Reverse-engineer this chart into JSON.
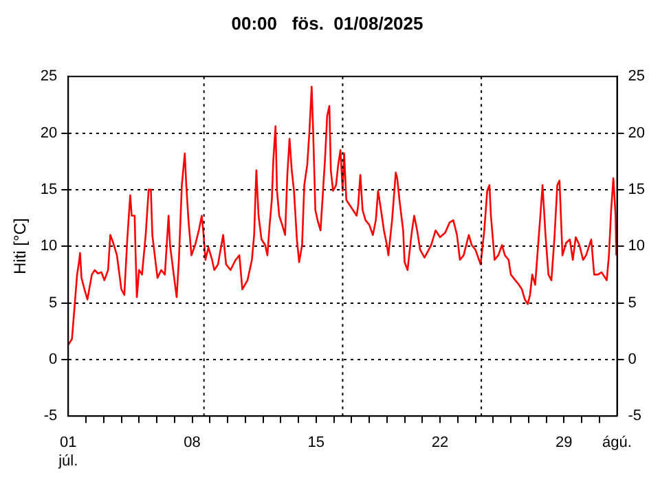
{
  "chart_data": {
    "type": "line",
    "title": "00:00   fös.  01/08/2025",
    "ylabel": "Hiti [°C]",
    "x": [
      "2025-07-01T00:00",
      "2025-07-01T05:00",
      "2025-07-01T08:00",
      "2025-07-01T12:00",
      "2025-07-01T15:00",
      "2025-07-01T16:00",
      "2025-07-01T18:00",
      "2025-07-01T22:00",
      "2025-07-02T02:00",
      "2025-07-02T08:00",
      "2025-07-02T12:00",
      "2025-07-02T16:00",
      "2025-07-02T21:00",
      "2025-07-03T01:00",
      "2025-07-03T06:00",
      "2025-07-03T09:00",
      "2025-07-03T13:00",
      "2025-07-03T18:00",
      "2025-07-04T00:00",
      "2025-07-04T04:00",
      "2025-07-04T08:00",
      "2025-07-04T12:00",
      "2025-07-04T14:00",
      "2025-07-04T18:00",
      "2025-07-04T19:00",
      "2025-07-04T21:00",
      "2025-07-05T00:00",
      "2025-07-05T04:00",
      "2025-07-05T09:00",
      "2025-07-05T13:00",
      "2025-07-05T16:00",
      "2025-07-05T18:00",
      "2025-07-05T22:00",
      "2025-07-06T01:00",
      "2025-07-06T06:00",
      "2025-07-06T11:00",
      "2025-07-06T16:00",
      "2025-07-06T18:00",
      "2025-07-07T00:00",
      "2025-07-07T03:00",
      "2025-07-07T06:00",
      "2025-07-07T10:00",
      "2025-07-07T14:00",
      "2025-07-07T16:00",
      "2025-07-07T19:00",
      "2025-07-07T23:00",
      "2025-07-08T04:00",
      "2025-07-08T09:00",
      "2025-07-08T13:00",
      "2025-07-08T15:00",
      "2025-07-08T18:00",
      "2025-07-08T22:00",
      "2025-07-09T03:00",
      "2025-07-09T06:00",
      "2025-07-09T11:00",
      "2025-07-09T18:00",
      "2025-07-09T22:00",
      "2025-07-10T04:00",
      "2025-07-10T11:00",
      "2025-07-10T16:00",
      "2025-07-10T20:00",
      "2025-07-11T03:00",
      "2025-07-11T09:00",
      "2025-07-11T12:00",
      "2025-07-11T15:00",
      "2025-07-11T18:00",
      "2025-07-11T22:00",
      "2025-07-12T03:00",
      "2025-07-12T06:00",
      "2025-07-12T09:00",
      "2025-07-12T12:00",
      "2025-07-12T14:00",
      "2025-07-12T17:00",
      "2025-07-12T19:00",
      "2025-07-12T22:00",
      "2025-07-13T02:00",
      "2025-07-13T06:00",
      "2025-07-13T09:00",
      "2025-07-13T12:00",
      "2025-07-13T15:00",
      "2025-07-13T18:00",
      "2025-07-13T22:00",
      "2025-07-14T01:00",
      "2025-07-14T05:00",
      "2025-07-14T08:00",
      "2025-07-14T12:00",
      "2025-07-14T15:00",
      "2025-07-14T18:00",
      "2025-07-14T20:00",
      "2025-07-14T23:00",
      "2025-07-15T02:00",
      "2025-07-15T06:00",
      "2025-07-15T09:00",
      "2025-07-15T12:00",
      "2025-07-15T15:00",
      "2025-07-15T18:00",
      "2025-07-15T20:00",
      "2025-07-15T23:00",
      "2025-07-16T03:00",
      "2025-07-16T06:00",
      "2025-07-16T09:00",
      "2025-07-16T12:00",
      "2025-07-16T14:00",
      "2025-07-16T17:00",
      "2025-07-16T22:00",
      "2025-07-17T02:00",
      "2025-07-17T07:00",
      "2025-07-17T09:00",
      "2025-07-17T12:00",
      "2025-07-17T15:00",
      "2025-07-17T19:00",
      "2025-07-18T00:00",
      "2025-07-18T05:00",
      "2025-07-18T09:00",
      "2025-07-18T12:00",
      "2025-07-18T16:00",
      "2025-07-18T20:00",
      "2025-07-19T00:00",
      "2025-07-19T02:00",
      "2025-07-19T07:00",
      "2025-07-19T12:00",
      "2025-07-19T14:00",
      "2025-07-19T17:00",
      "2025-07-19T22:00",
      "2025-07-20T00:00",
      "2025-07-20T04:00",
      "2025-07-20T07:00",
      "2025-07-20T10:00",
      "2025-07-20T13:00",
      "2025-07-20T17:00",
      "2025-07-20T21:00",
      "2025-07-21T03:00",
      "2025-07-21T12:00",
      "2025-07-21T18:00",
      "2025-07-22T00:00",
      "2025-07-22T07:00",
      "2025-07-22T13:00",
      "2025-07-22T18:00",
      "2025-07-22T23:00",
      "2025-07-23T03:00",
      "2025-07-23T08:00",
      "2025-07-23T15:00",
      "2025-07-23T19:00",
      "2025-07-24T00:00",
      "2025-07-24T07:00",
      "2025-07-24T12:00",
      "2025-07-24T16:00",
      "2025-07-24T19:00",
      "2025-07-24T21:00",
      "2025-07-25T02:00",
      "2025-07-25T07:00",
      "2025-07-25T12:00",
      "2025-07-25T16:00",
      "2025-07-25T21:00",
      "2025-07-26T00:00",
      "2025-07-26T06:00",
      "2025-07-26T11:00",
      "2025-07-26T15:00",
      "2025-07-26T19:00",
      "2025-07-26T23:00",
      "2025-07-27T02:00",
      "2025-07-27T05:00",
      "2025-07-27T09:00",
      "2025-07-27T12:00",
      "2025-07-27T16:00",
      "2025-07-27T19:00",
      "2025-07-27T23:00",
      "2025-07-28T03:00",
      "2025-07-28T07:00",
      "2025-07-28T11:00",
      "2025-07-28T15:00",
      "2025-07-28T18:00",
      "2025-07-28T22:00",
      "2025-07-29T03:00",
      "2025-07-29T08:00",
      "2025-07-29T12:00",
      "2025-07-29T16:00",
      "2025-07-29T21:00",
      "2025-07-30T02:00",
      "2025-07-30T06:00",
      "2025-07-30T13:00",
      "2025-07-30T17:00",
      "2025-07-30T22:00",
      "2025-07-31T03:00",
      "2025-07-31T10:00",
      "2025-07-31T13:00",
      "2025-07-31T16:00",
      "2025-07-31T19:00",
      "2025-07-31T22:00",
      "2025-07-31T23:00"
    ],
    "series": [
      {
        "color": "#ff0000",
        "values": [
          1.3,
          1.8,
          4.2,
          7.5,
          8.8,
          9.4,
          7.2,
          6.2,
          5.3,
          7.5,
          7.9,
          7.6,
          7.7,
          7.0,
          7.9,
          11.0,
          10.3,
          9.2,
          6.2,
          5.7,
          10.6,
          14.5,
          12.7,
          12.7,
          10.1,
          5.5,
          7.9,
          7.5,
          11.0,
          15.0,
          15.0,
          11.0,
          8.8,
          7.2,
          7.9,
          7.5,
          12.7,
          10.1,
          7.0,
          5.5,
          8.8,
          15.4,
          18.2,
          15.4,
          12.3,
          9.2,
          10.1,
          11.4,
          12.7,
          11.4,
          8.8,
          9.9,
          8.8,
          7.9,
          8.4,
          11.0,
          8.4,
          7.9,
          8.8,
          9.2,
          6.2,
          7.0,
          8.8,
          11.0,
          16.7,
          12.7,
          10.6,
          10.1,
          9.2,
          11.9,
          14.1,
          17.6,
          20.6,
          14.9,
          12.7,
          11.9,
          11.0,
          16.3,
          19.5,
          16.7,
          14.9,
          10.6,
          8.6,
          10.1,
          15.4,
          17.2,
          20.2,
          24.1,
          20.2,
          13.2,
          12.3,
          11.4,
          14.5,
          17.6,
          21.5,
          22.4,
          16.7,
          14.9,
          15.4,
          17.2,
          18.5,
          14.9,
          18.2,
          14.1,
          13.6,
          13.2,
          12.7,
          13.6,
          16.3,
          13.2,
          12.3,
          11.9,
          11.0,
          12.3,
          14.9,
          13.2,
          11.4,
          10.1,
          9.2,
          12.3,
          16.5,
          16.0,
          14.1,
          11.4,
          8.6,
          7.9,
          9.7,
          11.4,
          12.7,
          11.4,
          9.7,
          9.0,
          10.1,
          11.4,
          10.8,
          11.2,
          12.1,
          12.3,
          11.0,
          8.8,
          9.2,
          11.0,
          10.1,
          9.7,
          8.4,
          11.4,
          14.9,
          15.4,
          12.7,
          8.8,
          9.2,
          10.1,
          9.2,
          8.8,
          7.5,
          7.0,
          6.6,
          6.2,
          5.3,
          4.9,
          5.7,
          7.5,
          6.6,
          9.2,
          12.7,
          15.4,
          11.0,
          7.5,
          7.0,
          10.6,
          15.4,
          15.8,
          9.2,
          10.3,
          10.6,
          8.8,
          10.8,
          10.1,
          8.8,
          9.2,
          10.6,
          7.5,
          7.5,
          7.7,
          7.0,
          9.2,
          13.2,
          16.0,
          12.7,
          9.2
        ]
      }
    ],
    "xlim": [
      "2025-07-01",
      "2025-08-01"
    ],
    "xticks": [
      {
        "value": "2025-07-01",
        "label": "01\njúl."
      },
      {
        "value": "2025-07-02",
        "label": null
      },
      {
        "value": "2025-07-03",
        "label": null
      },
      {
        "value": "2025-07-04",
        "label": null
      },
      {
        "value": "2025-07-05",
        "label": null
      },
      {
        "value": "2025-07-06",
        "label": null
      },
      {
        "value": "2025-07-07",
        "label": null
      },
      {
        "value": "2025-07-08",
        "label": "08"
      },
      {
        "value": "2025-07-09",
        "label": null
      },
      {
        "value": "2025-07-10",
        "label": null
      },
      {
        "value": "2025-07-11",
        "label": null
      },
      {
        "value": "2025-07-12",
        "label": null
      },
      {
        "value": "2025-07-13",
        "label": null
      },
      {
        "value": "2025-07-14",
        "label": null
      },
      {
        "value": "2025-07-15",
        "label": "15"
      },
      {
        "value": "2025-07-16",
        "label": null
      },
      {
        "value": "2025-07-17",
        "label": null
      },
      {
        "value": "2025-07-18",
        "label": null
      },
      {
        "value": "2025-07-19",
        "label": null
      },
      {
        "value": "2025-07-20",
        "label": null
      },
      {
        "value": "2025-07-21",
        "label": null
      },
      {
        "value": "2025-07-22",
        "label": "22"
      },
      {
        "value": "2025-07-23",
        "label": null
      },
      {
        "value": "2025-07-24",
        "label": null
      },
      {
        "value": "2025-07-25",
        "label": null
      },
      {
        "value": "2025-07-26",
        "label": null
      },
      {
        "value": "2025-07-27",
        "label": null
      },
      {
        "value": "2025-07-28",
        "label": null
      },
      {
        "value": "2025-07-29",
        "label": "29"
      },
      {
        "value": "2025-07-30",
        "label": null
      },
      {
        "value": "2025-07-31",
        "label": null
      },
      {
        "value": "2025-08-01",
        "label": "ágú."
      }
    ],
    "ylim": [
      -5,
      25
    ],
    "yticks": [
      -5,
      0,
      5,
      10,
      15,
      20,
      25
    ],
    "y2lim": [
      -5,
      25
    ],
    "y2ticks": [
      -5,
      0,
      5,
      10,
      15,
      20,
      25
    ],
    "grid": "y",
    "line_style": "solid",
    "marker": "none",
    "ref_lines": [
      {
        "axis": "x",
        "value": "2025-07-08T16:00",
        "color": "#000000",
        "line_style": "dotted"
      },
      {
        "axis": "x",
        "value": "2025-07-16T12:00",
        "color": "#000000",
        "line_style": "dotted"
      },
      {
        "axis": "x",
        "value": "2025-07-24T08:00",
        "color": "#000000",
        "line_style": "dotted"
      }
    ]
  }
}
